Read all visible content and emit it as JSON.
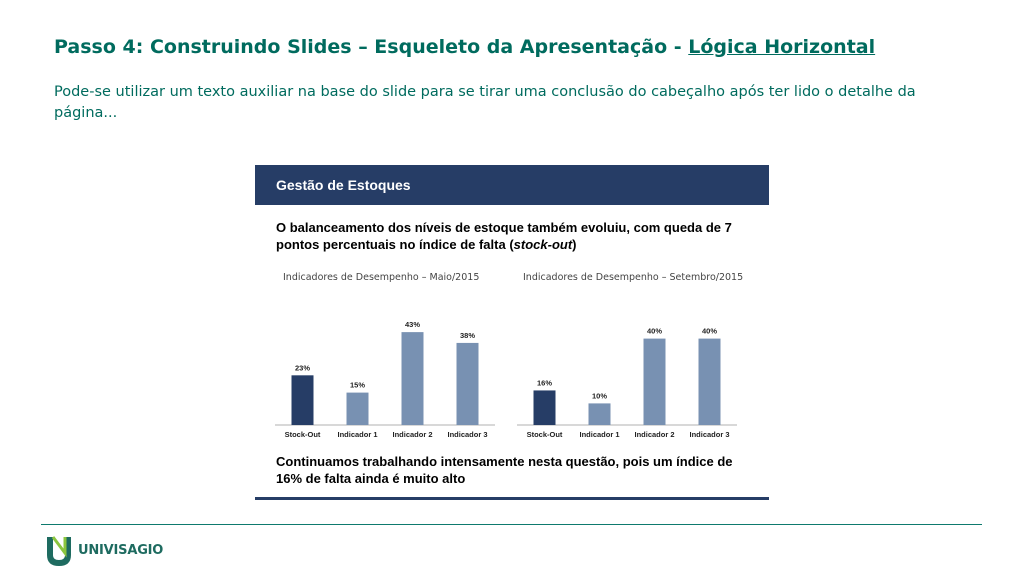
{
  "slide": {
    "title_main": "Passo 4: Construindo Slides – Esqueleto da Apresentação - ",
    "title_link": "Lógica Horizontal",
    "subtitle": "Pode-se utilizar um texto auxiliar na base do slide para se tirar uma conclusão do cabeçalho após ter lido o detalhe da página..."
  },
  "card": {
    "header": "Gestão de Estoques",
    "lead_part1": "O balanceamento dos níveis de estoque também evoluiu, com queda de 7 pontos percentuais no índice de falta (",
    "lead_italic": "stock-out",
    "lead_part2": ")",
    "footer": "Continuamos trabalhando intensamente nesta questão, pois um índice de 16% de falta ainda é muito alto"
  },
  "footer": {
    "logo_text": "UNIVISAGIO"
  },
  "colors": {
    "title": "#006b5e",
    "header_bg": "#263d66",
    "bar_highlight": "#263d66",
    "bar_default": "#7891b2"
  },
  "chart_data": [
    {
      "type": "bar",
      "title": "Indicadores de Desempenho – Maio/2015",
      "categories": [
        "Stock-Out",
        "Indicador 1",
        "Indicador 2",
        "Indicador 3"
      ],
      "values": [
        23,
        15,
        43,
        38
      ],
      "value_labels": [
        "23%",
        "15%",
        "43%",
        "38%"
      ],
      "highlight_index": 0,
      "ylim": [
        0,
        50
      ],
      "grid": false
    },
    {
      "type": "bar",
      "title": "Indicadores de Desempenho – Setembro/2015",
      "categories": [
        "Stock-Out",
        "Indicador 1",
        "Indicador 2",
        "Indicador 3"
      ],
      "values": [
        16,
        10,
        40,
        40
      ],
      "value_labels": [
        "16%",
        "10%",
        "40%",
        "40%"
      ],
      "highlight_index": 0,
      "ylim": [
        0,
        50
      ],
      "grid": false
    }
  ]
}
